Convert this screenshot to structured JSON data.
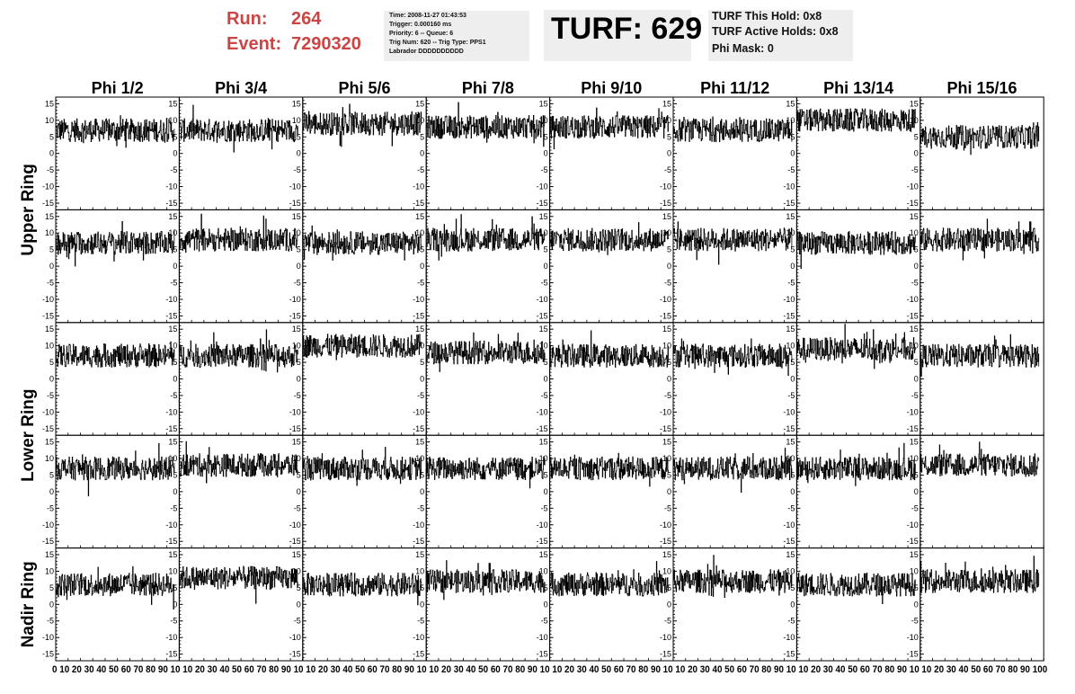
{
  "header": {
    "run_label": "Run:",
    "run_value": "264",
    "event_label": "Event:",
    "event_value": "7290320",
    "info_lines": [
      "Time: 2008-11-27 01:43:53",
      "Trigger: 0.000160 ms",
      "Priority: 6 -- Queue: 6",
      "Trig Num: 620 -- Trig Type: PPS1",
      "Labrador DDDDDDDDDD"
    ],
    "turf_title": "TURF: 629",
    "turf_lines": [
      "TURF This Hold: 0x8",
      "TURF Active Holds: 0x8",
      "Phi Mask: 0"
    ]
  },
  "chart_data": {
    "type": "line",
    "layout": "grid of 5 rows x 8 columns",
    "column_titles": [
      "Phi 1/2",
      "Phi 3/4",
      "Phi 5/6",
      "Phi 7/8",
      "Phi 9/10",
      "Phi 11/12",
      "Phi 13/14",
      "Phi 15/16"
    ],
    "row_labels": [
      {
        "text": "Upper Ring",
        "rows": [
          0,
          1
        ]
      },
      {
        "text": "Lower Ring",
        "rows": [
          2,
          3
        ]
      },
      {
        "text": "Nadir Ring",
        "rows": [
          4
        ]
      }
    ],
    "xlim": [
      0,
      100
    ],
    "ylim": [
      -17,
      17
    ],
    "y_ticks": [
      15,
      10,
      5,
      0,
      -5,
      -10,
      -15
    ],
    "x_ticks": [
      0,
      10,
      20,
      30,
      40,
      50,
      60,
      70,
      80,
      90,
      100
    ],
    "bottom_axis_labels": "0 10 20 30 40 50 60 70 80 90 10 10 20 30 40 50 60 70 80 90 10 10 20 30 40 50 60 70 80 90 10 10 20 30 40 50 60 70 80 90 10 10 20 30 40 50 60 70 80 90 10 10 20 30 40 50 60 70 80 90 10 10 20 30 40 50 60 70 80 90 10 10 20 30 40 50 60 70 80 90 100",
    "panel_means": [
      [
        7,
        7,
        9,
        8,
        8,
        7,
        10,
        5
      ],
      [
        7,
        8,
        7,
        8,
        8,
        8,
        7,
        8
      ],
      [
        7,
        7,
        10,
        8,
        7,
        7,
        9,
        7
      ],
      [
        7,
        8,
        7,
        7,
        7,
        7,
        7,
        8
      ],
      [
        6,
        8,
        6,
        7,
        6,
        7,
        6,
        7
      ]
    ],
    "noise_amplitude": 3.5
  }
}
